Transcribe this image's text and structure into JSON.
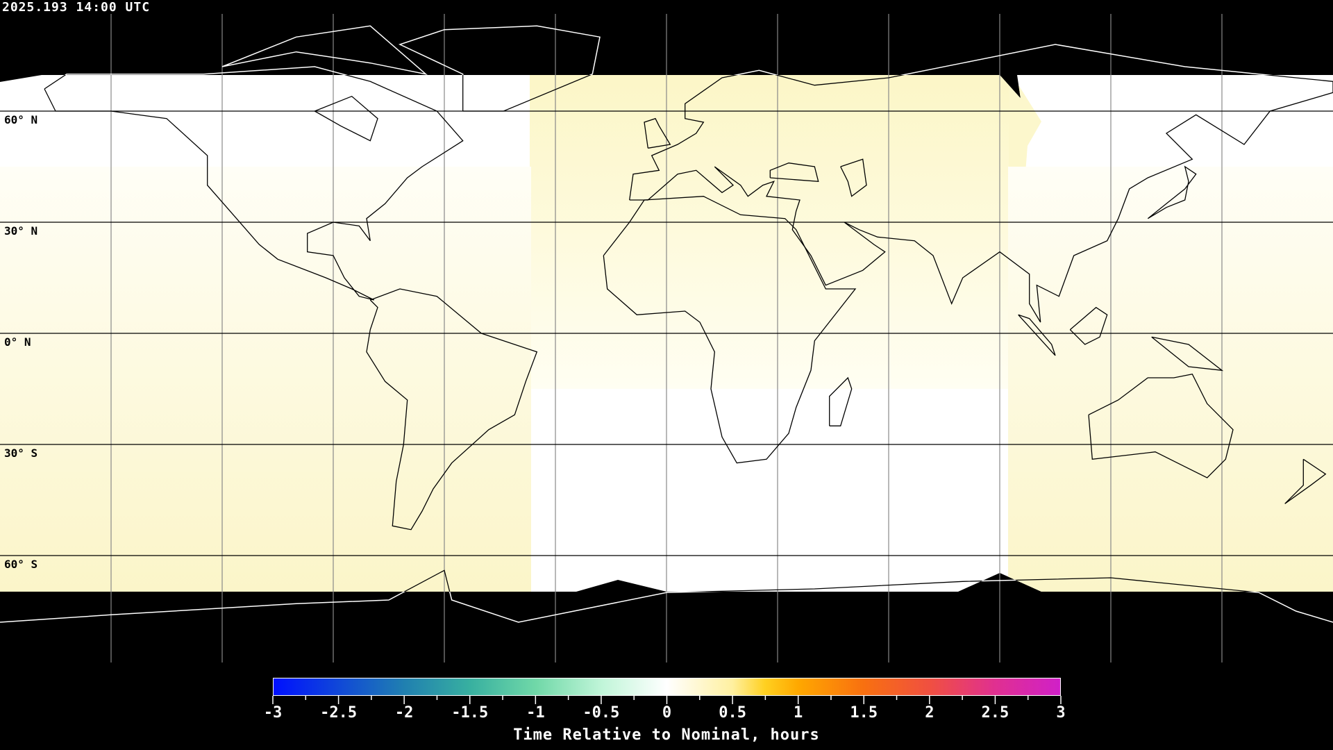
{
  "timestamp": "2025.193 14:00 UTC",
  "map": {
    "projection": "equirectangular",
    "grid_spacing_deg": 30,
    "lat_labels": [
      "60° N",
      "30° N",
      "0° N",
      "30° S",
      "60° S"
    ],
    "lat_values": [
      60,
      30,
      0,
      -30,
      -60
    ],
    "colors": {
      "polar_mask": "#000000",
      "nominal": "#ffffff",
      "tint": "#fcf7cc",
      "coast_light": "#000000",
      "coast_dark": "#ffffff"
    }
  },
  "colorbar": {
    "title": "Time Relative to Nominal, hours",
    "min": -3,
    "max": 3,
    "tick_labels": [
      "-3",
      "-2.5",
      "-2",
      "-1.5",
      "-1",
      "-0.5",
      "0",
      "0.5",
      "1",
      "1.5",
      "2",
      "2.5",
      "3"
    ],
    "stops": [
      {
        "v": -3,
        "c": "#0010ff"
      },
      {
        "v": -2,
        "c": "#2080b0"
      },
      {
        "v": -1.5,
        "c": "#38b0a0"
      },
      {
        "v": -1,
        "c": "#70d8a8"
      },
      {
        "v": -0.5,
        "c": "#c0f5d8"
      },
      {
        "v": 0,
        "c": "#ffffff"
      },
      {
        "v": 0.5,
        "c": "#fff0a0"
      },
      {
        "v": 0.75,
        "c": "#ffd020"
      },
      {
        "v": 1,
        "c": "#ffa800"
      },
      {
        "v": 1.5,
        "c": "#f87010"
      },
      {
        "v": 2,
        "c": "#f05040"
      },
      {
        "v": 2.5,
        "c": "#e03090"
      },
      {
        "v": 3,
        "c": "#d020c8"
      }
    ]
  }
}
